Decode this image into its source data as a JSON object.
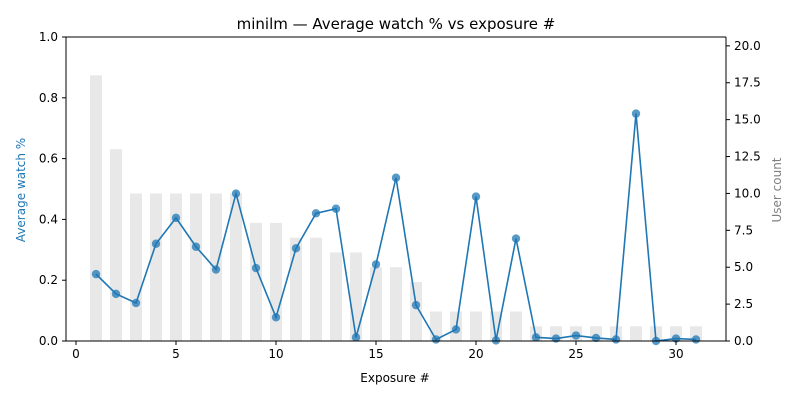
{
  "colors": {
    "line": "#1f77b4",
    "marker": "#1f77b4",
    "bars": "#d9d9d9",
    "left_axis_label": "#1f77b4",
    "right_axis_label": "#808080",
    "axis": "#000000"
  },
  "chart_data": {
    "type": "line",
    "title": "minilm — Average watch % vs exposure #",
    "xlabel": "Exposure #",
    "ylabel": "Average watch %",
    "y2label": "User count",
    "xlim": [
      -0.5,
      32.5
    ],
    "ylim": [
      0,
      1.0
    ],
    "y2lim": [
      0,
      20.6
    ],
    "x_ticks": [
      0,
      5,
      10,
      15,
      20,
      25,
      30
    ],
    "x_tick_labels": [
      "0",
      "5",
      "10",
      "15",
      "20",
      "25",
      "30"
    ],
    "y_ticks": [
      0.0,
      0.2,
      0.4,
      0.6,
      0.8,
      1.0
    ],
    "y_tick_labels": [
      "0.0",
      "0.2",
      "0.4",
      "0.6",
      "0.8",
      "1.0"
    ],
    "y2_ticks": [
      0,
      2.5,
      5,
      7.5,
      10,
      12.5,
      15,
      17.5,
      20
    ],
    "y2_tick_labels": [
      "0.0",
      "2.5",
      "5.0",
      "7.5",
      "10.0",
      "12.5",
      "15.0",
      "17.5",
      "20.0"
    ],
    "grid": false,
    "x": [
      1,
      2,
      3,
      4,
      5,
      6,
      7,
      8,
      9,
      10,
      11,
      12,
      13,
      14,
      15,
      16,
      17,
      18,
      19,
      20,
      21,
      22,
      23,
      24,
      25,
      26,
      27,
      28,
      29,
      30,
      31
    ],
    "series": [
      {
        "axis": "left",
        "kind": "line",
        "values": [
          0.22,
          0.155,
          0.125,
          0.32,
          0.405,
          0.31,
          0.235,
          0.485,
          0.24,
          0.078,
          0.305,
          0.42,
          0.435,
          0.012,
          0.252,
          0.537,
          0.118,
          0.005,
          0.038,
          0.475,
          0.002,
          0.337,
          0.012,
          0.008,
          0.018,
          0.01,
          0.005,
          0.748,
          0.0,
          0.008,
          0.005
        ]
      },
      {
        "axis": "right",
        "kind": "bar",
        "values": [
          18,
          13,
          10,
          10,
          10,
          10,
          10,
          10,
          8,
          8,
          7,
          7,
          6,
          6,
          5,
          5,
          4,
          2,
          2,
          2,
          2,
          2,
          1,
          1,
          1,
          1,
          1,
          1,
          1,
          1,
          1
        ]
      }
    ]
  }
}
